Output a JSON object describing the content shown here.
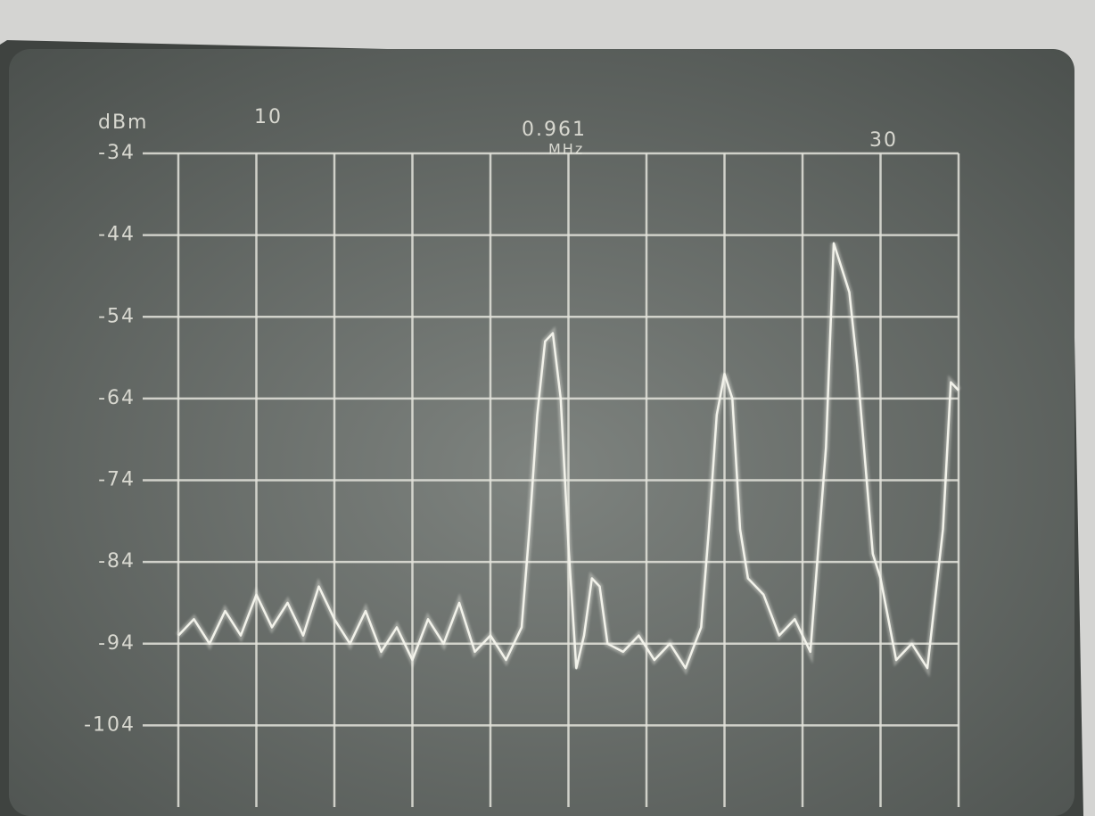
{
  "chart_data": {
    "type": "line",
    "y_label": "dBm",
    "annotations": [
      "10",
      "0.961",
      "MHz",
      "30"
    ],
    "x": [
      0.911,
      0.913,
      0.915,
      0.917,
      0.919,
      0.921,
      0.923,
      0.925,
      0.927,
      0.929,
      0.931,
      0.933,
      0.935,
      0.937,
      0.939,
      0.941,
      0.943,
      0.945,
      0.947,
      0.949,
      0.951,
      0.953,
      0.955,
      0.956,
      0.957,
      0.958,
      0.959,
      0.96,
      0.961,
      0.962,
      0.963,
      0.964,
      0.965,
      0.966,
      0.968,
      0.97,
      0.972,
      0.974,
      0.976,
      0.978,
      0.979,
      0.98,
      0.981,
      0.982,
      0.983,
      0.984,
      0.986,
      0.988,
      0.99,
      0.992,
      0.994,
      0.995,
      0.996,
      0.997,
      0.998,
      1.0,
      1.001,
      1.003,
      1.005,
      1.007,
      1.009,
      1.01,
      1.011
    ],
    "series": [
      {
        "color": "#f2f2ea",
        "values": [
          -93,
          -91,
          -94,
          -90,
          -93,
          -88,
          -92,
          -89,
          -93,
          -87,
          -91,
          -94,
          -90,
          -95,
          -92,
          -96,
          -91,
          -94,
          -89,
          -95,
          -93,
          -96,
          -92,
          -80,
          -66,
          -57,
          -56,
          -64,
          -82,
          -97,
          -93,
          -86,
          -87,
          -94,
          -95,
          -93,
          -96,
          -94,
          -97,
          -92,
          -80,
          -66,
          -61,
          -64,
          -80,
          -86,
          -88,
          -93,
          -91,
          -95,
          -70,
          -45,
          -48,
          -51,
          -60,
          -83,
          -86,
          -96,
          -94,
          -97,
          -80,
          -62,
          -63
        ]
      }
    ],
    "xlim": [
      0.911,
      1.011
    ],
    "xticks": [
      0.911,
      0.921,
      0.931,
      0.941,
      0.951,
      0.961,
      0.971,
      0.981,
      0.991,
      1.001,
      1.011
    ],
    "ylim": [
      -114,
      -34
    ],
    "yticks": [
      -34,
      -44,
      -54,
      -64,
      -74,
      -84,
      -94,
      -104
    ],
    "grid": true
  }
}
